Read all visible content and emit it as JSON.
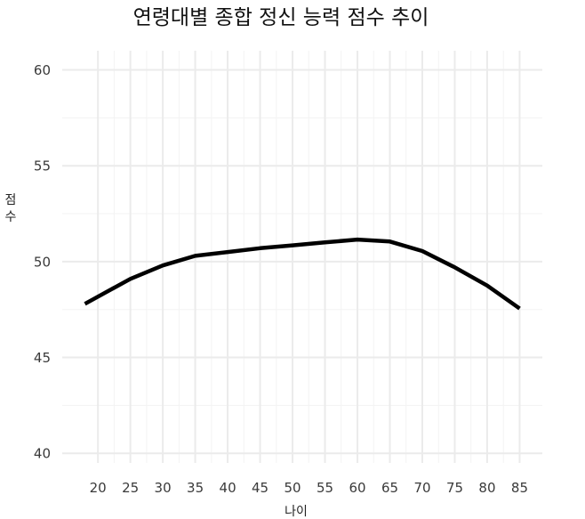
{
  "chart_data": {
    "type": "line",
    "title": "연령대별 종합 정신 능력 점수 추이",
    "xlabel": "나이",
    "ylabel": "점수",
    "xlim": [
      14.5,
      88.5
    ],
    "ylim": [
      39.5,
      61
    ],
    "xticks": [
      20,
      25,
      30,
      35,
      40,
      45,
      50,
      55,
      60,
      65,
      70,
      75,
      80,
      85
    ],
    "yticks": [
      40,
      45,
      50,
      55,
      60
    ],
    "grid": true,
    "legend": "none",
    "series": [
      {
        "color": "#000000",
        "x": [
          18,
          25,
          30,
          35,
          40,
          45,
          50,
          55,
          60,
          65,
          70,
          75,
          80,
          85
        ],
        "y": [
          47.8,
          49.1,
          49.8,
          50.3,
          50.5,
          50.7,
          50.85,
          51.0,
          51.15,
          51.05,
          50.55,
          49.7,
          48.75,
          47.55
        ]
      }
    ]
  }
}
